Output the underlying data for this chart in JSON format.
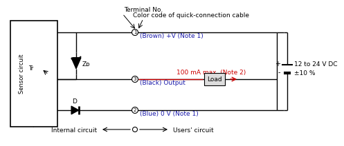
{
  "bg_color": "#ffffff",
  "line_color": "#000000",
  "red_color": "#cc0000",
  "blue_text_color": "#1a1aaa",
  "sensor_label": "Sensor circuit",
  "title_terminal": "Terminal No.",
  "title_color": "Color code of quick-connection cable",
  "label_brown": "(Brown) +V (Note 1)",
  "label_black": "(Black) Output",
  "label_blue": "(Blue) 0 V (Note 1)",
  "label_100ma": "100 mA max. (Note 2)",
  "label_load": "Load",
  "label_voltage": "12 to 24 V DC",
  "label_tolerance": "±10 %",
  "label_internal": "Internal circuit",
  "label_users": "Users' circuit",
  "label_tr": "Tr",
  "label_zd": "Zᴅ",
  "label_d": "D"
}
